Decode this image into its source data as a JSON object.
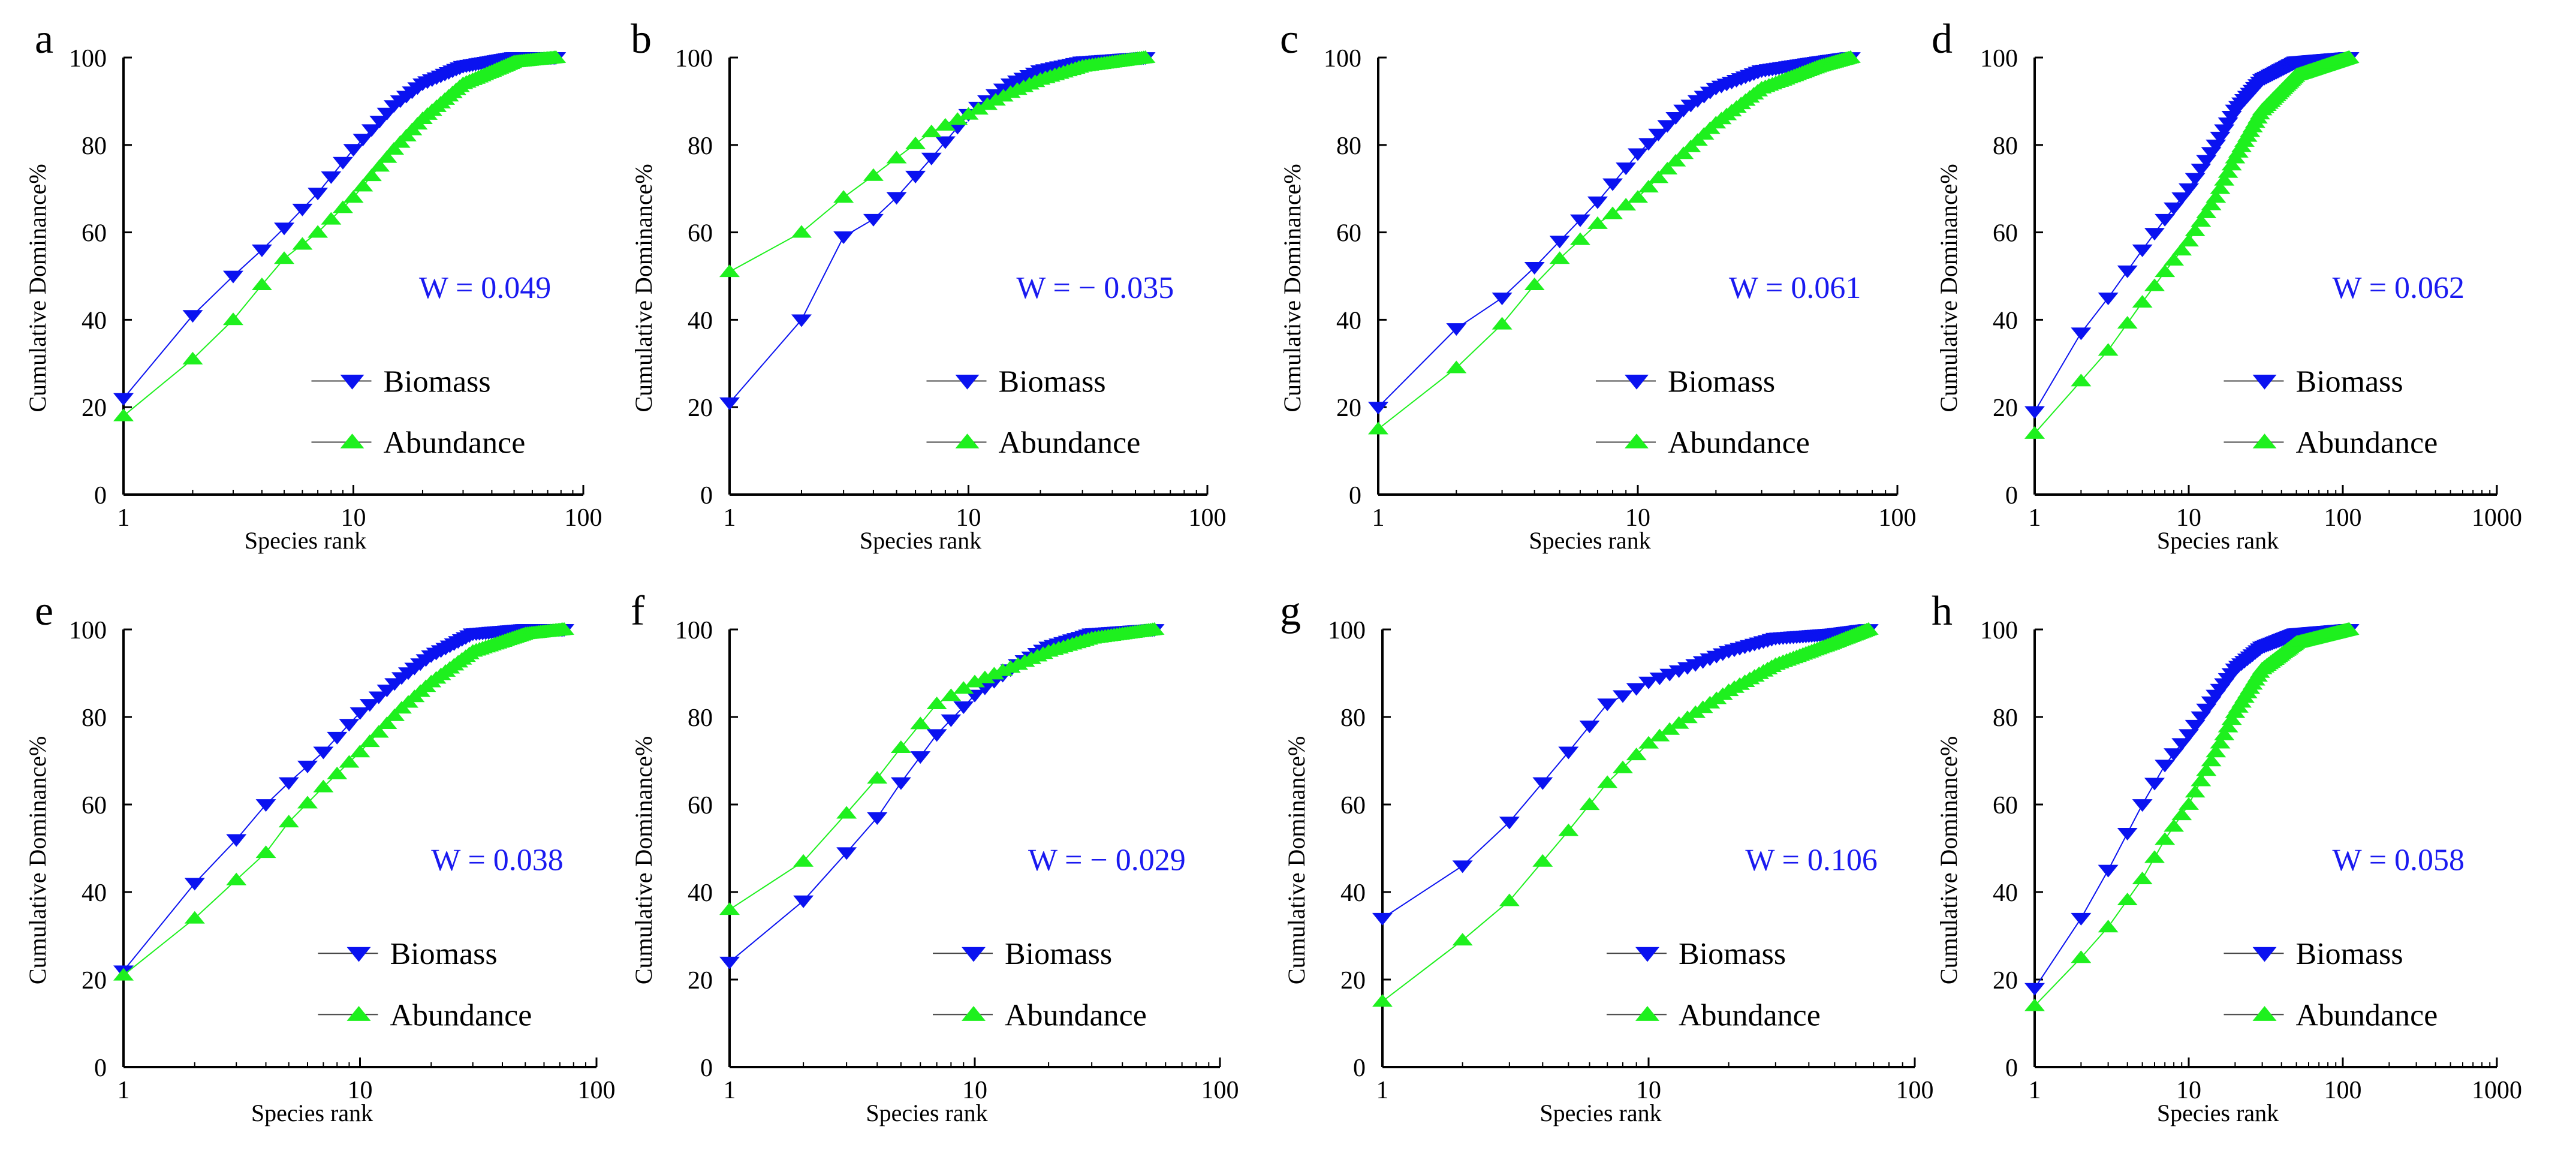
{
  "colors": {
    "biomass": "#0a12f0",
    "abundance": "#1ef01e",
    "axis": "#000000",
    "w_text": "#1a1af0"
  },
  "chart_data": [
    {
      "panel": "a",
      "type": "scatter",
      "xscale": "log",
      "xlim": [
        1,
        100
      ],
      "ylim": [
        0,
        100
      ],
      "xticks": [
        "1",
        "10",
        "100"
      ],
      "yticks": [
        "0",
        "20",
        "40",
        "60",
        "80",
        "100"
      ],
      "xlabel": "Species rank",
      "ylabel": "Cumulative Dominance%",
      "w_label": "W = 0.049",
      "legend": [
        {
          "name": "Biomass",
          "marker": "triangle-down"
        },
        {
          "name": "Abundance",
          "marker": "triangle-up"
        }
      ],
      "series": [
        {
          "name": "Biomass",
          "n": 76,
          "points": [
            [
              1,
              22
            ],
            [
              2,
              41
            ],
            [
              3,
              50
            ],
            [
              4,
              56
            ],
            [
              5,
              61
            ],
            [
              7,
              69
            ],
            [
              10,
              79
            ],
            [
              15,
              89
            ],
            [
              20,
              94
            ],
            [
              30,
              98
            ],
            [
              50,
              100
            ],
            [
              76,
              100
            ]
          ]
        },
        {
          "name": "Abundance",
          "n": 76,
          "points": [
            [
              1,
              18
            ],
            [
              2,
              31
            ],
            [
              3,
              40
            ],
            [
              4,
              48
            ],
            [
              5,
              54
            ],
            [
              7,
              60
            ],
            [
              10,
              68
            ],
            [
              15,
              79
            ],
            [
              20,
              86
            ],
            [
              30,
              94
            ],
            [
              50,
              99
            ],
            [
              76,
              100
            ]
          ]
        }
      ]
    },
    {
      "panel": "b",
      "type": "scatter",
      "xscale": "log",
      "xlim": [
        1,
        100
      ],
      "ylim": [
        0,
        100
      ],
      "xticks": [
        "1",
        "10",
        "100"
      ],
      "yticks": [
        "0",
        "20",
        "40",
        "60",
        "80",
        "100"
      ],
      "xlabel": "Species rank",
      "ylabel": "Cumulative Dominance%",
      "w_label": "W = − 0.035",
      "legend": [
        {
          "name": "Biomass",
          "marker": "triangle-down"
        },
        {
          "name": "Abundance",
          "marker": "triangle-up"
        }
      ],
      "series": [
        {
          "name": "Biomass",
          "n": 55,
          "points": [
            [
              1,
              21
            ],
            [
              2,
              40
            ],
            [
              3,
              59
            ],
            [
              4,
              63
            ],
            [
              5,
              68
            ],
            [
              7,
              77
            ],
            [
              10,
              87
            ],
            [
              15,
              94
            ],
            [
              20,
              97
            ],
            [
              30,
              99
            ],
            [
              55,
              100
            ]
          ]
        },
        {
          "name": "Abundance",
          "n": 55,
          "points": [
            [
              1,
              51
            ],
            [
              2,
              60
            ],
            [
              3,
              68
            ],
            [
              4,
              73
            ],
            [
              5,
              77
            ],
            [
              7,
              83
            ],
            [
              10,
              87
            ],
            [
              15,
              92
            ],
            [
              20,
              95
            ],
            [
              30,
              98
            ],
            [
              55,
              100
            ]
          ]
        }
      ]
    },
    {
      "panel": "c",
      "type": "scatter",
      "xscale": "log",
      "xlim": [
        1,
        100
      ],
      "ylim": [
        0,
        100
      ],
      "xticks": [
        "1",
        "10",
        "100"
      ],
      "yticks": [
        "0",
        "20",
        "40",
        "60",
        "80",
        "100"
      ],
      "xlabel": "Species rank",
      "ylabel": "Cumulative Dominance%",
      "w_label": "W = 0.061",
      "legend": [
        {
          "name": "Biomass",
          "marker": "triangle-down"
        },
        {
          "name": "Abundance",
          "marker": "triangle-up"
        }
      ],
      "series": [
        {
          "name": "Biomass",
          "n": 66,
          "points": [
            [
              1,
              20
            ],
            [
              2,
              38
            ],
            [
              3,
              45
            ],
            [
              4,
              52
            ],
            [
              5,
              58
            ],
            [
              7,
              67
            ],
            [
              10,
              78
            ],
            [
              15,
              88
            ],
            [
              20,
              93
            ],
            [
              30,
              97
            ],
            [
              50,
              99
            ],
            [
              66,
              100
            ]
          ]
        },
        {
          "name": "Abundance",
          "n": 66,
          "points": [
            [
              1,
              15
            ],
            [
              2,
              29
            ],
            [
              3,
              39
            ],
            [
              4,
              48
            ],
            [
              5,
              54
            ],
            [
              7,
              62
            ],
            [
              10,
              68
            ],
            [
              15,
              78
            ],
            [
              20,
              85
            ],
            [
              30,
              93
            ],
            [
              50,
              98
            ],
            [
              66,
              100
            ]
          ]
        }
      ]
    },
    {
      "panel": "d",
      "type": "scatter",
      "xscale": "log",
      "xlim": [
        1,
        1000
      ],
      "ylim": [
        0,
        100
      ],
      "xticks": [
        "1",
        "10",
        "100",
        "1000"
      ],
      "yticks": [
        "0",
        "20",
        "40",
        "60",
        "80",
        "100"
      ],
      "xlabel": "Species rank",
      "ylabel": "Cumulative Dominance%",
      "w_label": "W = 0.062",
      "legend": [
        {
          "name": "Biomass",
          "marker": "triangle-down"
        },
        {
          "name": "Abundance",
          "marker": "triangle-up"
        }
      ],
      "series": [
        {
          "name": "Biomass",
          "n": 110,
          "points": [
            [
              1,
              19
            ],
            [
              2,
              37
            ],
            [
              3,
              45
            ],
            [
              5,
              56
            ],
            [
              7,
              63
            ],
            [
              10,
              70
            ],
            [
              15,
              80
            ],
            [
              20,
              88
            ],
            [
              30,
              95
            ],
            [
              50,
              99
            ],
            [
              110,
              100
            ]
          ]
        },
        {
          "name": "Abundance",
          "n": 110,
          "points": [
            [
              1,
              14
            ],
            [
              2,
              26
            ],
            [
              3,
              33
            ],
            [
              5,
              44
            ],
            [
              7,
              51
            ],
            [
              10,
              58
            ],
            [
              15,
              68
            ],
            [
              20,
              77
            ],
            [
              30,
              88
            ],
            [
              50,
              96
            ],
            [
              110,
              100
            ]
          ]
        }
      ]
    },
    {
      "panel": "e",
      "type": "scatter",
      "xscale": "log",
      "xlim": [
        1,
        100
      ],
      "ylim": [
        0,
        100
      ],
      "xticks": [
        "1",
        "10",
        "100"
      ],
      "yticks": [
        "0",
        "20",
        "40",
        "60",
        "80",
        "100"
      ],
      "xlabel": "Species rank",
      "ylabel": "Cumulative Dominance%",
      "w_label": "W = 0.038",
      "legend": [
        {
          "name": "Biomass",
          "marker": "triangle-down"
        },
        {
          "name": "Abundance",
          "marker": "triangle-up"
        }
      ],
      "series": [
        {
          "name": "Biomass",
          "n": 73,
          "points": [
            [
              1,
              22
            ],
            [
              2,
              42
            ],
            [
              3,
              52
            ],
            [
              4,
              60
            ],
            [
              5,
              65
            ],
            [
              7,
              72
            ],
            [
              10,
              81
            ],
            [
              15,
              89
            ],
            [
              20,
              94
            ],
            [
              30,
              99
            ],
            [
              50,
              100
            ],
            [
              73,
              100
            ]
          ]
        },
        {
          "name": "Abundance",
          "n": 73,
          "points": [
            [
              1,
              21
            ],
            [
              2,
              34
            ],
            [
              4,
              49
            ],
            [
              5,
              56
            ],
            [
              7,
              64
            ],
            [
              10,
              72
            ],
            [
              15,
              82
            ],
            [
              20,
              88
            ],
            [
              30,
              95
            ],
            [
              50,
              99
            ],
            [
              73,
              100
            ]
          ]
        }
      ]
    },
    {
      "panel": "f",
      "type": "scatter",
      "xscale": "log",
      "xlim": [
        1,
        100
      ],
      "ylim": [
        0,
        100
      ],
      "xticks": [
        "1",
        "10",
        "100"
      ],
      "yticks": [
        "0",
        "20",
        "40",
        "60",
        "80",
        "100"
      ],
      "xlabel": "Species rank",
      "ylabel": "Cumulative Dominance%",
      "w_label": "W = − 0.029",
      "legend": [
        {
          "name": "Biomass",
          "marker": "triangle-down"
        },
        {
          "name": "Abundance",
          "marker": "triangle-up"
        }
      ],
      "series": [
        {
          "name": "Biomass",
          "n": 54,
          "points": [
            [
              1,
              24
            ],
            [
              2,
              38
            ],
            [
              3,
              49
            ],
            [
              4,
              57
            ],
            [
              5,
              65
            ],
            [
              7,
              76
            ],
            [
              10,
              85
            ],
            [
              15,
              92
            ],
            [
              20,
              96
            ],
            [
              30,
              99
            ],
            [
              54,
              100
            ]
          ]
        },
        {
          "name": "Abundance",
          "n": 54,
          "points": [
            [
              1,
              36
            ],
            [
              2,
              47
            ],
            [
              3,
              58
            ],
            [
              4,
              66
            ],
            [
              5,
              73
            ],
            [
              7,
              83
            ],
            [
              10,
              88
            ],
            [
              15,
              92
            ],
            [
              20,
              95
            ],
            [
              30,
              98
            ],
            [
              54,
              100
            ]
          ]
        }
      ]
    },
    {
      "panel": "g",
      "type": "scatter",
      "xscale": "log",
      "xlim": [
        1,
        100
      ],
      "ylim": [
        0,
        100
      ],
      "xticks": [
        "1",
        "10",
        "100"
      ],
      "yticks": [
        "0",
        "20",
        "40",
        "60",
        "80",
        "100"
      ],
      "xlabel": "Species rank",
      "ylabel": "Cumulative Dominance%",
      "w_label": "W = 0.106",
      "legend": [
        {
          "name": "Biomass",
          "marker": "triangle-down"
        },
        {
          "name": "Abundance",
          "marker": "triangle-up"
        }
      ],
      "series": [
        {
          "name": "Biomass",
          "n": 67,
          "points": [
            [
              1,
              34
            ],
            [
              2,
              46
            ],
            [
              3,
              56
            ],
            [
              4,
              65
            ],
            [
              5,
              72
            ],
            [
              7,
              83
            ],
            [
              10,
              88
            ],
            [
              15,
              92
            ],
            [
              20,
              95
            ],
            [
              30,
              98
            ],
            [
              50,
              99
            ],
            [
              67,
              100
            ]
          ]
        },
        {
          "name": "Abundance",
          "n": 67,
          "points": [
            [
              1,
              15
            ],
            [
              2,
              29
            ],
            [
              3,
              38
            ],
            [
              4,
              47
            ],
            [
              5,
              54
            ],
            [
              7,
              65
            ],
            [
              10,
              74
            ],
            [
              15,
              81
            ],
            [
              20,
              86
            ],
            [
              30,
              92
            ],
            [
              50,
              97
            ],
            [
              67,
              100
            ]
          ]
        }
      ]
    },
    {
      "panel": "h",
      "type": "scatter",
      "xscale": "log",
      "xlim": [
        1,
        1000
      ],
      "ylim": [
        0,
        100
      ],
      "xticks": [
        "1",
        "10",
        "100",
        "1000"
      ],
      "yticks": [
        "0",
        "20",
        "40",
        "60",
        "80",
        "100"
      ],
      "xlabel": "Species rank",
      "ylabel": "Cumulative Dominance%",
      "w_label": "W = 0.058",
      "legend": [
        {
          "name": "Biomass",
          "marker": "triangle-down"
        },
        {
          "name": "Abundance",
          "marker": "triangle-up"
        }
      ],
      "series": [
        {
          "name": "Biomass",
          "n": 110,
          "points": [
            [
              1,
              18
            ],
            [
              2,
              34
            ],
            [
              3,
              45
            ],
            [
              5,
              60
            ],
            [
              7,
              69
            ],
            [
              10,
              76
            ],
            [
              15,
              85
            ],
            [
              20,
              91
            ],
            [
              30,
              96
            ],
            [
              50,
              99
            ],
            [
              110,
              100
            ]
          ]
        },
        {
          "name": "Abundance",
          "n": 110,
          "points": [
            [
              1,
              14
            ],
            [
              2,
              25
            ],
            [
              3,
              32
            ],
            [
              5,
              43
            ],
            [
              7,
              52
            ],
            [
              10,
              60
            ],
            [
              15,
              72
            ],
            [
              20,
              81
            ],
            [
              30,
              91
            ],
            [
              50,
              97
            ],
            [
              110,
              100
            ]
          ]
        }
      ]
    }
  ]
}
